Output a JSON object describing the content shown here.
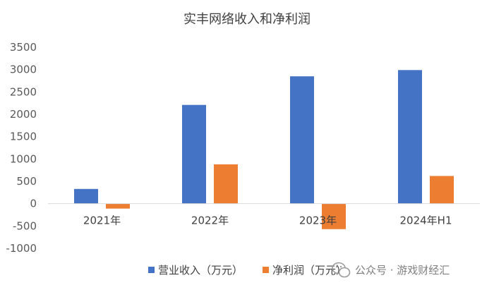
{
  "chart_data": {
    "type": "bar",
    "title": "实丰网络收入和净利润",
    "categories": [
      "2021年",
      "2022年",
      "2023年",
      "2024年H1"
    ],
    "series": [
      {
        "name": "营业收入（万元）",
        "color": "#4472C4",
        "values": [
          330,
          2210,
          2850,
          2990
        ]
      },
      {
        "name": "净利润（万元）",
        "color": "#ED7D31",
        "values": [
          -110,
          880,
          -570,
          620
        ]
      }
    ],
    "yticks": [
      "3500",
      "3000",
      "2500",
      "2000",
      "1500",
      "1000",
      "500",
      "0",
      "-500",
      "-1000"
    ],
    "ylim": [
      -1000,
      3500
    ],
    "grid": false,
    "legend_position": "bottom"
  },
  "watermark": {
    "icon": "wechat-icon",
    "text": "公众号 · 游戏财经汇"
  }
}
